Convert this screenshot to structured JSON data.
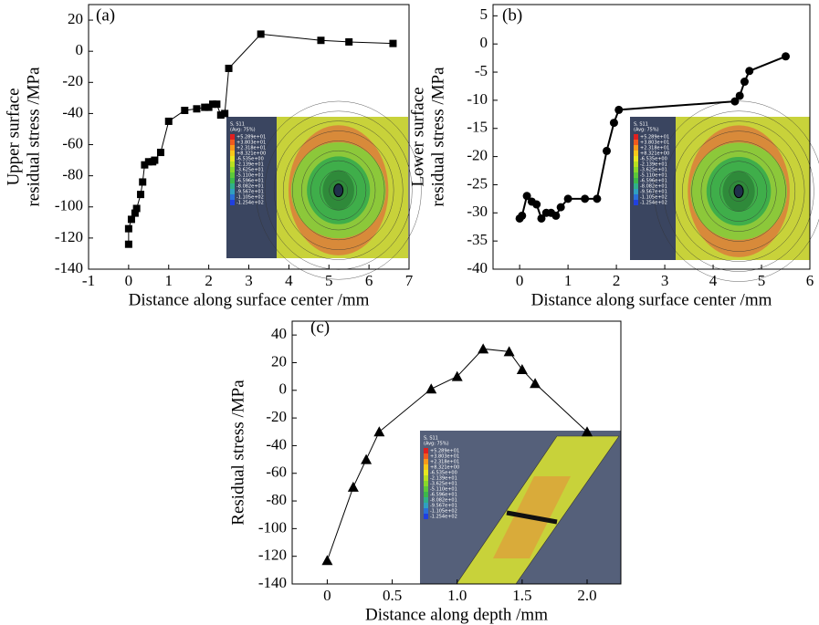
{
  "chart_data": [
    {
      "type": "line",
      "title": "(a)",
      "ylabel": [
        "Upper surface",
        "residual stress /MPa"
      ],
      "xlabel": "Distance along surface center /mm",
      "marker": "square",
      "color": "#000000",
      "x": [
        0,
        0,
        0.07,
        0.16,
        0.2,
        0.3,
        0.35,
        0.4,
        0.5,
        0.6,
        0.65,
        0.8,
        1.0,
        1.4,
        1.7,
        1.9,
        2.0,
        2.1,
        2.2,
        2.3,
        2.4,
        2.5,
        3.3,
        4.8,
        5.5,
        6.6
      ],
      "values": [
        -124,
        -114,
        -108,
        -104,
        -101,
        -92,
        -84,
        -73,
        -71,
        -71,
        -70,
        -65,
        -45,
        -38,
        -37,
        -36,
        -36,
        -34,
        -34,
        -41,
        -40,
        -11,
        11,
        7,
        6,
        5
      ],
      "xlim": [
        -1,
        7
      ],
      "ylim": [
        -140,
        30
      ],
      "xticks": [
        -1,
        0,
        1,
        2,
        3,
        4,
        5,
        6,
        7
      ],
      "yticks": [
        -140,
        -120,
        -100,
        -80,
        -60,
        -40,
        -20,
        0,
        20
      ],
      "inset": {
        "title": "S, S11",
        "subtitle": "(Avg: 75%)",
        "legend": [
          "+5.289e+01",
          "+3.803e+01",
          "+2.318e+01",
          "+8.321e+00",
          "-6.535e+00",
          "-2.139e+01",
          "-3.625e+01",
          "-5.110e+01",
          "-6.596e+01",
          "-8.082e+01",
          "-9.567e+01",
          "-1.105e+02",
          "-1.254e+02"
        ]
      }
    },
    {
      "type": "line",
      "title": "(b)",
      "ylabel": [
        "Lower surface",
        "residual stress /MPa"
      ],
      "xlabel": "Distance along surface center /mm",
      "marker": "circle",
      "color": "#000000",
      "x": [
        0,
        0.05,
        0.15,
        0.25,
        0.35,
        0.45,
        0.55,
        0.65,
        0.75,
        0.85,
        1.0,
        1.35,
        1.6,
        1.8,
        1.95,
        2.05,
        4.45,
        4.55,
        4.65,
        4.75,
        5.5
      ],
      "values": [
        -31,
        -30.5,
        -27,
        -28,
        -28.5,
        -31,
        -30,
        -30,
        -30.5,
        -29,
        -27.5,
        -27.5,
        -27.5,
        -19,
        -14,
        -11.7,
        -10.2,
        -9.2,
        -6.7,
        -4.8,
        -2.2
      ],
      "xlim": [
        -0.55,
        6
      ],
      "ylim": [
        -40,
        7
      ],
      "xticks": [
        0,
        1,
        2,
        3,
        4,
        5,
        6
      ],
      "yticks": [
        -40,
        -35,
        -30,
        -25,
        -20,
        -15,
        -10,
        -5,
        0,
        5
      ],
      "inset": {
        "title": "S, S11",
        "subtitle": "(Avg: 75%)",
        "legend": [
          "+5.289e+01",
          "+3.803e+01",
          "+2.318e+01",
          "+8.321e+00",
          "-6.535e+00",
          "-2.139e+01",
          "-3.625e+01",
          "-5.110e+01",
          "-6.596e+01",
          "-8.082e+01",
          "-9.567e+01",
          "-1.105e+02",
          "-1.254e+02"
        ]
      }
    },
    {
      "type": "line",
      "title": "(c)",
      "ylabel": [
        "Residual stress /MPa"
      ],
      "xlabel": "Distance along depth /mm",
      "marker": "triangle",
      "color": "#000000",
      "x": [
        0,
        0.2,
        0.3,
        0.4,
        0.8,
        1.0,
        1.2,
        1.4,
        1.5,
        1.6,
        2.0
      ],
      "values": [
        -123,
        -70,
        -50,
        -30,
        1,
        10,
        30,
        28,
        15,
        5,
        -30
      ],
      "xlim": [
        -0.27,
        2.26
      ],
      "ylim": [
        -140,
        50
      ],
      "xticks": [
        0,
        0.5,
        {
          "value": 1,
          "label": "1.0"
        },
        1.5,
        {
          "value": 2,
          "label": "2.0"
        }
      ],
      "yticks": [
        -140,
        -120,
        -100,
        -80,
        -60,
        -40,
        -20,
        0,
        20,
        40
      ],
      "inset": {
        "title": "S, S11",
        "subtitle": "(Avg: 75%)",
        "legend": [
          "+5.289e+01",
          "+3.803e+01",
          "+2.318e+01",
          "+8.321e+00",
          "-6.535e+00",
          "-2.139e+01",
          "-3.625e+01",
          "-5.110e+01",
          "-6.596e+01",
          "-8.082e+01",
          "-9.567e+01",
          "-1.105e+02",
          "-1.254e+02"
        ]
      }
    }
  ]
}
